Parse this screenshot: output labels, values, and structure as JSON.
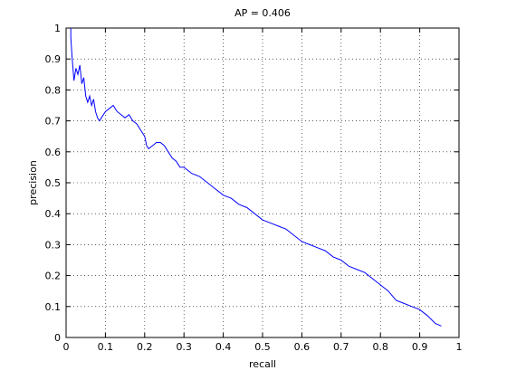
{
  "chart_data": {
    "type": "line",
    "title": "AP = 0.406",
    "x_label": "recall",
    "y_label": "precision",
    "x": [
      0.012,
      0.012,
      0.015,
      0.02,
      0.025,
      0.03,
      0.035,
      0.04,
      0.045,
      0.05,
      0.055,
      0.06,
      0.065,
      0.07,
      0.075,
      0.08,
      0.085,
      0.09,
      0.1,
      0.11,
      0.12,
      0.13,
      0.14,
      0.15,
      0.16,
      0.17,
      0.18,
      0.19,
      0.2,
      0.205,
      0.21,
      0.22,
      0.23,
      0.24,
      0.25,
      0.26,
      0.27,
      0.28,
      0.29,
      0.3,
      0.32,
      0.34,
      0.36,
      0.38,
      0.4,
      0.42,
      0.44,
      0.46,
      0.48,
      0.5,
      0.52,
      0.54,
      0.56,
      0.58,
      0.6,
      0.62,
      0.64,
      0.66,
      0.68,
      0.7,
      0.72,
      0.74,
      0.76,
      0.78,
      0.8,
      0.82,
      0.84,
      0.86,
      0.88,
      0.9,
      0.92,
      0.94,
      0.955
    ],
    "series": [
      {
        "color": "#0000ff",
        "values": [
          1.0,
          0.97,
          0.91,
          0.83,
          0.87,
          0.85,
          0.88,
          0.82,
          0.84,
          0.78,
          0.76,
          0.78,
          0.75,
          0.77,
          0.73,
          0.71,
          0.7,
          0.71,
          0.73,
          0.74,
          0.75,
          0.73,
          0.72,
          0.71,
          0.72,
          0.7,
          0.69,
          0.67,
          0.65,
          0.62,
          0.61,
          0.62,
          0.63,
          0.63,
          0.62,
          0.6,
          0.58,
          0.57,
          0.55,
          0.55,
          0.53,
          0.52,
          0.5,
          0.48,
          0.46,
          0.45,
          0.43,
          0.42,
          0.4,
          0.38,
          0.37,
          0.36,
          0.35,
          0.33,
          0.31,
          0.3,
          0.29,
          0.28,
          0.26,
          0.25,
          0.23,
          0.22,
          0.21,
          0.19,
          0.17,
          0.15,
          0.12,
          0.11,
          0.1,
          0.09,
          0.07,
          0.045,
          0.037
        ]
      }
    ],
    "xlim": [
      0,
      1
    ],
    "ylim": [
      0,
      1
    ],
    "xticks": [
      0,
      0.1,
      0.2,
      0.3,
      0.4,
      0.5,
      0.6,
      0.7,
      0.8,
      0.9,
      1
    ],
    "yticks": [
      0,
      0.1,
      0.2,
      0.3,
      0.4,
      0.5,
      0.6,
      0.7,
      0.8,
      0.9,
      1
    ],
    "grid": true
  }
}
